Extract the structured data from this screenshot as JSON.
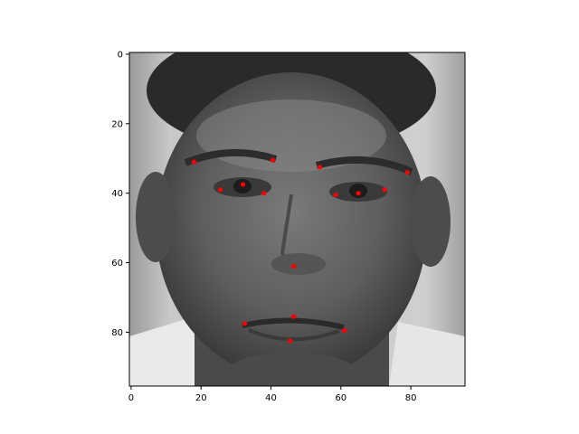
{
  "chart_data": {
    "type": "scatter",
    "title": "",
    "xlabel": "",
    "ylabel": "",
    "background": "grayscale-face-image",
    "image_size": [
      96,
      96
    ],
    "xlim": [
      -0.5,
      95.5
    ],
    "ylim": [
      95.5,
      -0.5
    ],
    "y_inverted": true,
    "grid": false,
    "legend": "none",
    "marker_color": "#ff0000",
    "x_ticks": [
      0,
      20,
      40,
      60,
      80
    ],
    "y_ticks": [
      0,
      20,
      40,
      60,
      80
    ],
    "x_tick_labels": [
      "0",
      "20",
      "40",
      "60",
      "80"
    ],
    "y_tick_labels": [
      "0",
      "20",
      "40",
      "60",
      "80"
    ],
    "points": [
      {
        "x": 18,
        "y": 31
      },
      {
        "x": 40.5,
        "y": 30.5
      },
      {
        "x": 54,
        "y": 32.5
      },
      {
        "x": 79,
        "y": 34
      },
      {
        "x": 25.5,
        "y": 39
      },
      {
        "x": 32,
        "y": 37.5
      },
      {
        "x": 38,
        "y": 40
      },
      {
        "x": 58.5,
        "y": 40.5
      },
      {
        "x": 65,
        "y": 40
      },
      {
        "x": 72.5,
        "y": 39
      },
      {
        "x": 46.5,
        "y": 61
      },
      {
        "x": 46.5,
        "y": 75.5
      },
      {
        "x": 32.5,
        "y": 77.5
      },
      {
        "x": 61,
        "y": 79.5
      },
      {
        "x": 45.5,
        "y": 82.5
      }
    ]
  }
}
